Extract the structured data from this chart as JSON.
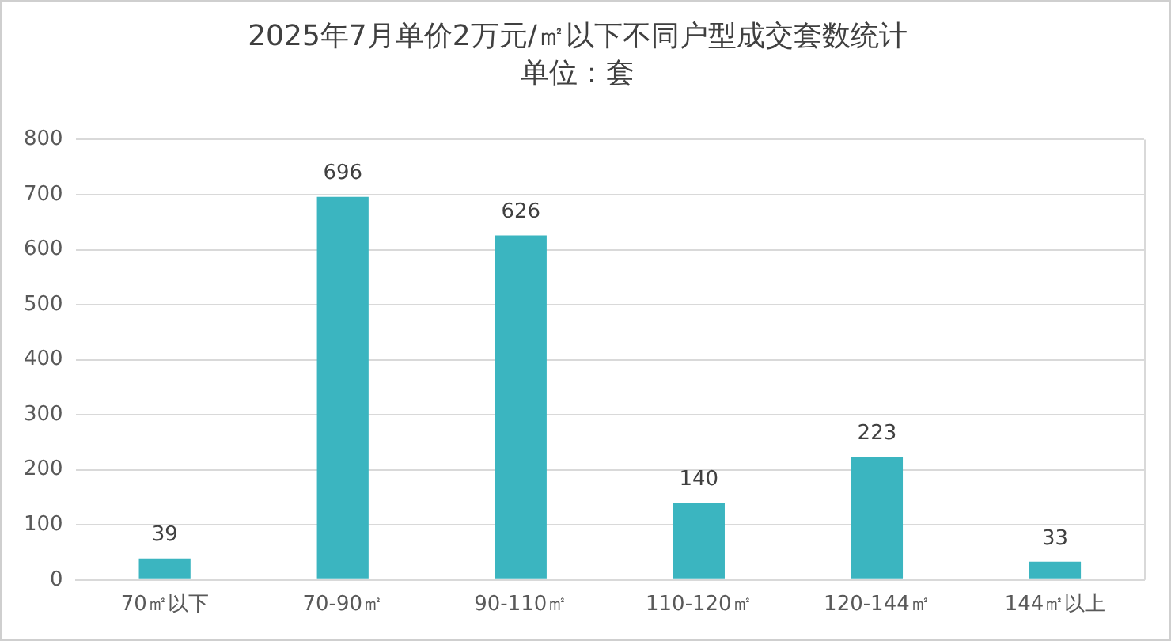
{
  "chart_data": {
    "type": "bar",
    "title": "2025年7月单价2万元/㎡以下不同户型成交套数统计",
    "subtitle": "单位：套",
    "categories": [
      "70㎡以下",
      "70-90㎡",
      "90-110㎡",
      "110-120㎡",
      "120-144㎡",
      "144㎡以上"
    ],
    "values": [
      39,
      696,
      626,
      140,
      223,
      33
    ],
    "color": "#3bb5c0",
    "ylim": [
      0,
      800
    ],
    "yticks": [
      0,
      100,
      200,
      300,
      400,
      500,
      600,
      700,
      800
    ],
    "grid": "y",
    "data_labels": true
  }
}
